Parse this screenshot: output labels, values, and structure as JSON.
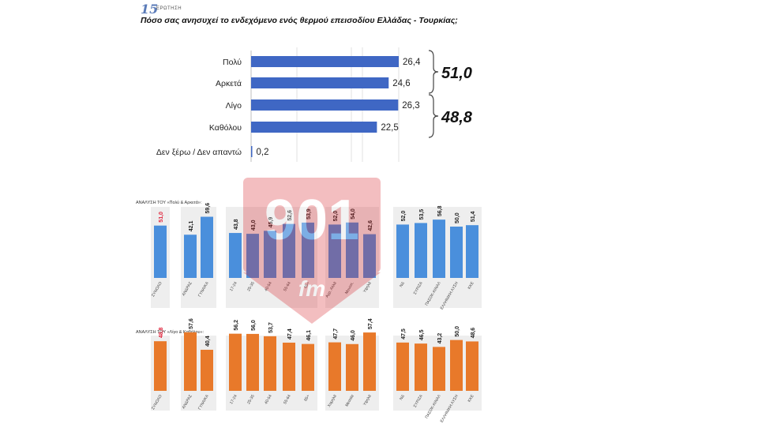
{
  "header": {
    "logo_number": "15",
    "logo_text": "ΕΡΩΤΗΣΗ",
    "question": "Πόσο σας ανησυχεί το ενδεχόμενο ενός θερμού επεισοδίου Ελλάδας - Τουρκίας;"
  },
  "chart_data": [
    {
      "type": "bar",
      "orientation": "horizontal",
      "categories": [
        "Πολύ",
        "Αρκετά",
        "Λίγο",
        "Καθόλου",
        "Δεν ξέρω / Δεν απαντώ"
      ],
      "values": [
        26.4,
        24.6,
        26.3,
        22.5,
        0.2
      ],
      "value_labels": [
        "26,4",
        "24,6",
        "26,3",
        "22,5",
        "0,2"
      ],
      "color": "#3f67c4",
      "grid": true,
      "groups": [
        {
          "label": "51,0",
          "members": [
            "Πολύ",
            "Αρκετά"
          ]
        },
        {
          "label": "48,8",
          "members": [
            "Λίγο",
            "Καθόλου"
          ]
        }
      ]
    },
    {
      "type": "bar",
      "title": "ΑΝΑΛΥΣΗ ΤΟΥ «Πολύ & Αρκετά»:",
      "color": "#4a8fdc",
      "highlight_color": "#e0223a",
      "groups": [
        {
          "categories": [
            "ΣΥΝΟΛΟ"
          ],
          "values": [
            51.0
          ],
          "labels": [
            "51,0"
          ],
          "highlight": [
            true
          ]
        },
        {
          "categories": [
            "ΑΝΔΡΑΣ",
            "ΓΥΝΑΙΚΑ"
          ],
          "values": [
            42.1,
            59.6
          ],
          "labels": [
            "42,1",
            "59,6"
          ]
        },
        {
          "categories": [
            "17-24",
            "25-35",
            "40-54",
            "55-64",
            "65+"
          ],
          "values": [
            43.8,
            43.0,
            45.9,
            52.6,
            53.9
          ],
          "labels": [
            "43,8",
            "43,0",
            "45,9",
            "52,6",
            "53,9"
          ]
        },
        {
          "categories": [
            "Αγρ. Αλλά",
            "Μονοπ.",
            "Υψηλά"
          ],
          "values": [
            52.0,
            54.0,
            42.6
          ],
          "labels": [
            "52,0",
            "54,0",
            "42,6"
          ]
        },
        {
          "categories": [
            "ΝΔ",
            "ΣΥΡΙΖΑ",
            "ΠΑΣΟΚ-ΚΙΝΑΛ",
            "ΕΛΛΗΝΙΚΗ ΛΥΣΗ",
            "ΚΚΕ"
          ],
          "values": [
            52.0,
            53.5,
            56.8,
            50.0,
            51.4
          ],
          "labels": [
            "52,0",
            "53,5",
            "56,8",
            "50,0",
            "51,4"
          ]
        }
      ],
      "ylim": [
        0,
        80
      ]
    },
    {
      "type": "bar",
      "title": "ΑΝΑΛΥΣΗ ΤΟΥ «Λίγο & Καθόλου»:",
      "color": "#e8792a",
      "highlight_color": "#e0223a",
      "groups": [
        {
          "categories": [
            "ΣΥΝΟΛΟ"
          ],
          "values": [
            48.8
          ],
          "labels": [
            "48,8"
          ],
          "highlight": [
            true
          ]
        },
        {
          "categories": [
            "ΑΝΔΡΑΣ",
            "ΓΥΝΑΙΚΑ"
          ],
          "values": [
            57.6,
            40.4
          ],
          "labels": [
            "57,6",
            "40,4"
          ]
        },
        {
          "categories": [
            "17-24",
            "25-35",
            "40-54",
            "55-64",
            "65+"
          ],
          "values": [
            56.2,
            56.0,
            53.7,
            47.4,
            46.1
          ],
          "labels": [
            "56,2",
            "56,0",
            "53,7",
            "47,4",
            "46,1"
          ]
        },
        {
          "categories": [
            "Χαμηλά",
            "Μεσαία",
            "Υψηλά"
          ],
          "values": [
            47.7,
            46.0,
            57.4
          ],
          "labels": [
            "47,7",
            "46,0",
            "57,4"
          ]
        },
        {
          "categories": [
            "ΝΔ",
            "ΣΥΡΙΖΑ",
            "ΠΑΣΟΚ-ΚΙΝΑΛ",
            "ΕΛΛΗΝΙΚΗ ΛΥΣΗ",
            "ΚΚΕ"
          ],
          "values": [
            47.5,
            46.5,
            43.2,
            50.0,
            48.6
          ],
          "labels": [
            "47,5",
            "46,5",
            "43,2",
            "50,0",
            "48,6"
          ]
        }
      ],
      "ylim": [
        0,
        80
      ]
    }
  ],
  "watermark": {
    "text": "901",
    "sub": "fm"
  }
}
